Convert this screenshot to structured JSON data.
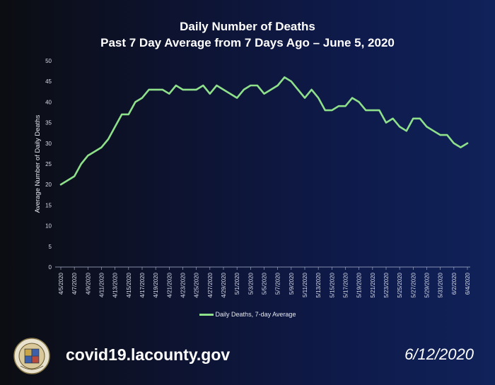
{
  "header": {
    "title_line1": "Daily Number of Deaths",
    "title_line2": "Past 7 Day Average from 7 Days Ago – June 5, 2020"
  },
  "footer": {
    "url": "covid19.lacounty.gov",
    "date": "6/12/2020",
    "seal_text": "COUNTY OF LOS ANGELES • CALIFORNIA"
  },
  "chart_data": {
    "type": "line",
    "ylabel": "Average Number of Daily Deaths",
    "xlabel": "",
    "ylim": [
      0,
      50
    ],
    "yticks": [
      0,
      5,
      10,
      15,
      20,
      25,
      30,
      35,
      40,
      45,
      50
    ],
    "grid": false,
    "legend_position": "bottom",
    "line_color": "#8fe08a",
    "x": [
      "4/5/2020",
      "4/6/2020",
      "4/7/2020",
      "4/8/2020",
      "4/9/2020",
      "4/10/2020",
      "4/11/2020",
      "4/12/2020",
      "4/13/2020",
      "4/14/2020",
      "4/15/2020",
      "4/16/2020",
      "4/17/2020",
      "4/18/2020",
      "4/19/2020",
      "4/20/2020",
      "4/21/2020",
      "4/22/2020",
      "4/23/2020",
      "4/24/2020",
      "4/25/2020",
      "4/26/2020",
      "4/27/2020",
      "4/28/2020",
      "4/29/2020",
      "4/30/2020",
      "5/1/2020",
      "5/2/2020",
      "5/3/2020",
      "5/4/2020",
      "5/5/2020",
      "5/6/2020",
      "5/7/2020",
      "5/8/2020",
      "5/9/2020",
      "5/10/2020",
      "5/11/2020",
      "5/12/2020",
      "5/13/2020",
      "5/14/2020",
      "5/15/2020",
      "5/16/2020",
      "5/17/2020",
      "5/18/2020",
      "5/19/2020",
      "5/20/2020",
      "5/21/2020",
      "5/22/2020",
      "5/23/2020",
      "5/24/2020",
      "5/25/2020",
      "5/26/2020",
      "5/27/2020",
      "5/28/2020",
      "5/29/2020",
      "5/30/2020",
      "5/31/2020",
      "6/1/2020",
      "6/2/2020",
      "6/3/2020",
      "6/4/2020"
    ],
    "tick_labels": [
      "4/5/2020",
      "4/7/2020",
      "4/9/2020",
      "4/11/2020",
      "4/13/2020",
      "4/15/2020",
      "4/17/2020",
      "4/19/2020",
      "4/21/2020",
      "4/23/2020",
      "4/25/2020",
      "4/27/2020",
      "4/29/2020",
      "5/1/2020",
      "5/3/2020",
      "5/5/2020",
      "5/7/2020",
      "5/9/2020",
      "5/11/2020",
      "5/13/2020",
      "5/15/2020",
      "5/17/2020",
      "5/19/2020",
      "5/21/2020",
      "5/23/2020",
      "5/25/2020",
      "5/27/2020",
      "5/29/2020",
      "5/31/2020",
      "6/2/2020",
      "6/4/2020"
    ],
    "series": [
      {
        "name": "Daily Deaths, 7-day Average",
        "values": [
          20,
          21,
          22,
          25,
          27,
          28,
          29,
          31,
          34,
          37,
          37,
          40,
          41,
          43,
          43,
          43,
          42,
          44,
          43,
          43,
          43,
          44,
          42,
          44,
          43,
          42,
          41,
          43,
          44,
          44,
          42,
          43,
          44,
          46,
          45,
          43,
          41,
          43,
          41,
          38,
          38,
          39,
          39,
          41,
          40,
          38,
          38,
          38,
          35,
          36,
          34,
          33,
          36,
          36,
          34,
          33,
          32,
          32,
          30,
          29,
          30
        ]
      }
    ]
  }
}
